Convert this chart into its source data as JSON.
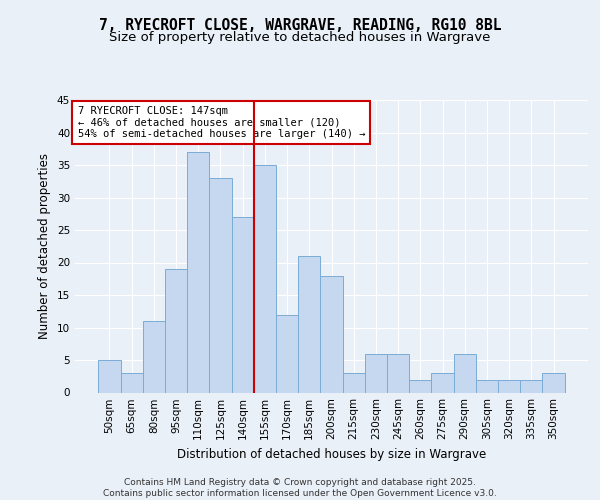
{
  "title_line1": "7, RYECROFT CLOSE, WARGRAVE, READING, RG10 8BL",
  "title_line2": "Size of property relative to detached houses in Wargrave",
  "xlabel": "Distribution of detached houses by size in Wargrave",
  "ylabel": "Number of detached properties",
  "footer": "Contains HM Land Registry data © Crown copyright and database right 2025.\nContains public sector information licensed under the Open Government Licence v3.0.",
  "categories": [
    "50sqm",
    "65sqm",
    "80sqm",
    "95sqm",
    "110sqm",
    "125sqm",
    "140sqm",
    "155sqm",
    "170sqm",
    "185sqm",
    "200sqm",
    "215sqm",
    "230sqm",
    "245sqm",
    "260sqm",
    "275sqm",
    "290sqm",
    "305sqm",
    "320sqm",
    "335sqm",
    "350sqm"
  ],
  "values": [
    5,
    3,
    11,
    19,
    37,
    33,
    27,
    35,
    12,
    21,
    18,
    3,
    6,
    6,
    2,
    3,
    6,
    2,
    2,
    2,
    3
  ],
  "bar_color": "#c5d8f0",
  "bar_edge_color": "#7aacd6",
  "vline_color": "#cc0000",
  "annotation_text": "7 RYECROFT CLOSE: 147sqm\n← 46% of detached houses are smaller (120)\n54% of semi-detached houses are larger (140) →",
  "annotation_box_color": "#cc0000",
  "ylim": [
    0,
    45
  ],
  "yticks": [
    0,
    5,
    10,
    15,
    20,
    25,
    30,
    35,
    40,
    45
  ],
  "bg_color": "#eaf0f8",
  "plot_bg_color": "#eaf0f8",
  "grid_color": "#ffffff",
  "title_fontsize": 10.5,
  "subtitle_fontsize": 9.5,
  "tick_fontsize": 7.5,
  "ylabel_fontsize": 8.5,
  "xlabel_fontsize": 8.5,
  "footer_fontsize": 6.5,
  "annotation_fontsize": 7.5
}
